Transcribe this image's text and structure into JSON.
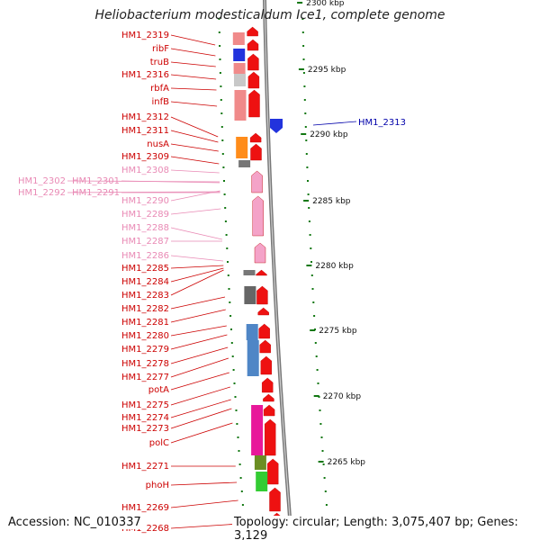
{
  "title": "Heliobacterium modesticaldum Ice1, complete genome",
  "footer": {
    "accession": "Accession: NC_010337",
    "summary": "Topology: circular; Length: 3,075,407 bp; Genes: 3,129"
  },
  "colors": {
    "label_red": "#cc0000",
    "label_pink": "#e98ab5",
    "label_blue": "#0000aa",
    "gene_red": "#ee1111",
    "gene_pink": "#f4a3c8",
    "gene_blue": "#2233dd",
    "tick_green": "#117711",
    "backbone": "#888888"
  },
  "scale_labels": [
    "2300 kbp",
    "2295 kbp",
    "2290 kbp",
    "2285 kbp",
    "2280 kbp",
    "2275 kbp",
    "2270 kbp",
    "2265 kbp"
  ],
  "gene_labels": [
    {
      "text": "HM1_2319",
      "type": "red"
    },
    {
      "text": "ribF",
      "type": "red"
    },
    {
      "text": "truB",
      "type": "red"
    },
    {
      "text": "HM1_2316",
      "type": "red"
    },
    {
      "text": "rbfA",
      "type": "red"
    },
    {
      "text": "infB",
      "type": "red"
    },
    {
      "text": "HM1_2312",
      "type": "red"
    },
    {
      "text": "HM1_2311",
      "type": "red"
    },
    {
      "text": "nusA",
      "type": "red"
    },
    {
      "text": "HM1_2309",
      "type": "red"
    },
    {
      "text": "HM1_2308",
      "type": "pink"
    },
    {
      "text": "HM1_2302",
      "type": "pink"
    },
    {
      "text": "HM1_2301",
      "type": "pink"
    },
    {
      "text": "HM1_2292",
      "type": "pink"
    },
    {
      "text": "HM1_2291",
      "type": "pink"
    },
    {
      "text": "HM1_2290",
      "type": "pink"
    },
    {
      "text": "HM1_2289",
      "type": "pink"
    },
    {
      "text": "HM1_2288",
      "type": "pink"
    },
    {
      "text": "HM1_2287",
      "type": "pink"
    },
    {
      "text": "HM1_2286",
      "type": "pink"
    },
    {
      "text": "HM1_2285",
      "type": "red"
    },
    {
      "text": "HM1_2284",
      "type": "red"
    },
    {
      "text": "HM1_2283",
      "type": "red"
    },
    {
      "text": "HM1_2282",
      "type": "red"
    },
    {
      "text": "HM1_2281",
      "type": "red"
    },
    {
      "text": "HM1_2280",
      "type": "red"
    },
    {
      "text": "HM1_2279",
      "type": "red"
    },
    {
      "text": "HM1_2278",
      "type": "red"
    },
    {
      "text": "HM1_2277",
      "type": "red"
    },
    {
      "text": "potA",
      "type": "red"
    },
    {
      "text": "HM1_2275",
      "type": "red"
    },
    {
      "text": "HM1_2274",
      "type": "red"
    },
    {
      "text": "HM1_2273",
      "type": "red"
    },
    {
      "text": "polC",
      "type": "red"
    },
    {
      "text": "HM1_2271",
      "type": "red"
    },
    {
      "text": "phoH",
      "type": "red"
    },
    {
      "text": "HM1_2269",
      "type": "red"
    },
    {
      "text": "HM1_2268",
      "type": "red"
    },
    {
      "text": "HM1_2313",
      "type": "blue"
    }
  ]
}
